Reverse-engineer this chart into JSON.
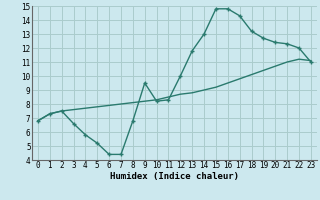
{
  "xlabel": "Humidex (Indice chaleur)",
  "xlim": [
    -0.5,
    23.5
  ],
  "ylim": [
    4,
    15
  ],
  "xticks": [
    0,
    1,
    2,
    3,
    4,
    5,
    6,
    7,
    8,
    9,
    10,
    11,
    12,
    13,
    14,
    15,
    16,
    17,
    18,
    19,
    20,
    21,
    22,
    23
  ],
  "yticks": [
    4,
    5,
    6,
    7,
    8,
    9,
    10,
    11,
    12,
    13,
    14,
    15
  ],
  "bg_color": "#cce8ee",
  "grid_color": "#aacccc",
  "line_color": "#2a7a6e",
  "line1": {
    "x": [
      0,
      1,
      2,
      3,
      4,
      5,
      6,
      7,
      8,
      9,
      10,
      11,
      12,
      13,
      14,
      15,
      16,
      17,
      18,
      19,
      20,
      21,
      22,
      23
    ],
    "y": [
      6.8,
      7.3,
      7.5,
      6.6,
      5.8,
      5.2,
      4.4,
      4.4,
      6.8,
      9.5,
      8.2,
      8.3,
      10.0,
      11.8,
      13.0,
      14.8,
      14.8,
      14.3,
      13.2,
      12.7,
      12.4,
      12.3,
      12.0,
      11.0
    ]
  },
  "line2": {
    "x": [
      0,
      1,
      2,
      3,
      4,
      5,
      6,
      7,
      8,
      9,
      10,
      11,
      12,
      13,
      14,
      15,
      16,
      17,
      18,
      19,
      20,
      21,
      22,
      23
    ],
    "y": [
      6.8,
      7.3,
      7.5,
      7.6,
      7.7,
      7.8,
      7.9,
      8.0,
      8.1,
      8.2,
      8.3,
      8.5,
      8.7,
      8.8,
      9.0,
      9.2,
      9.5,
      9.8,
      10.1,
      10.4,
      10.7,
      11.0,
      11.2,
      11.1
    ]
  },
  "tick_fontsize": 5.5,
  "xlabel_fontsize": 6.5
}
